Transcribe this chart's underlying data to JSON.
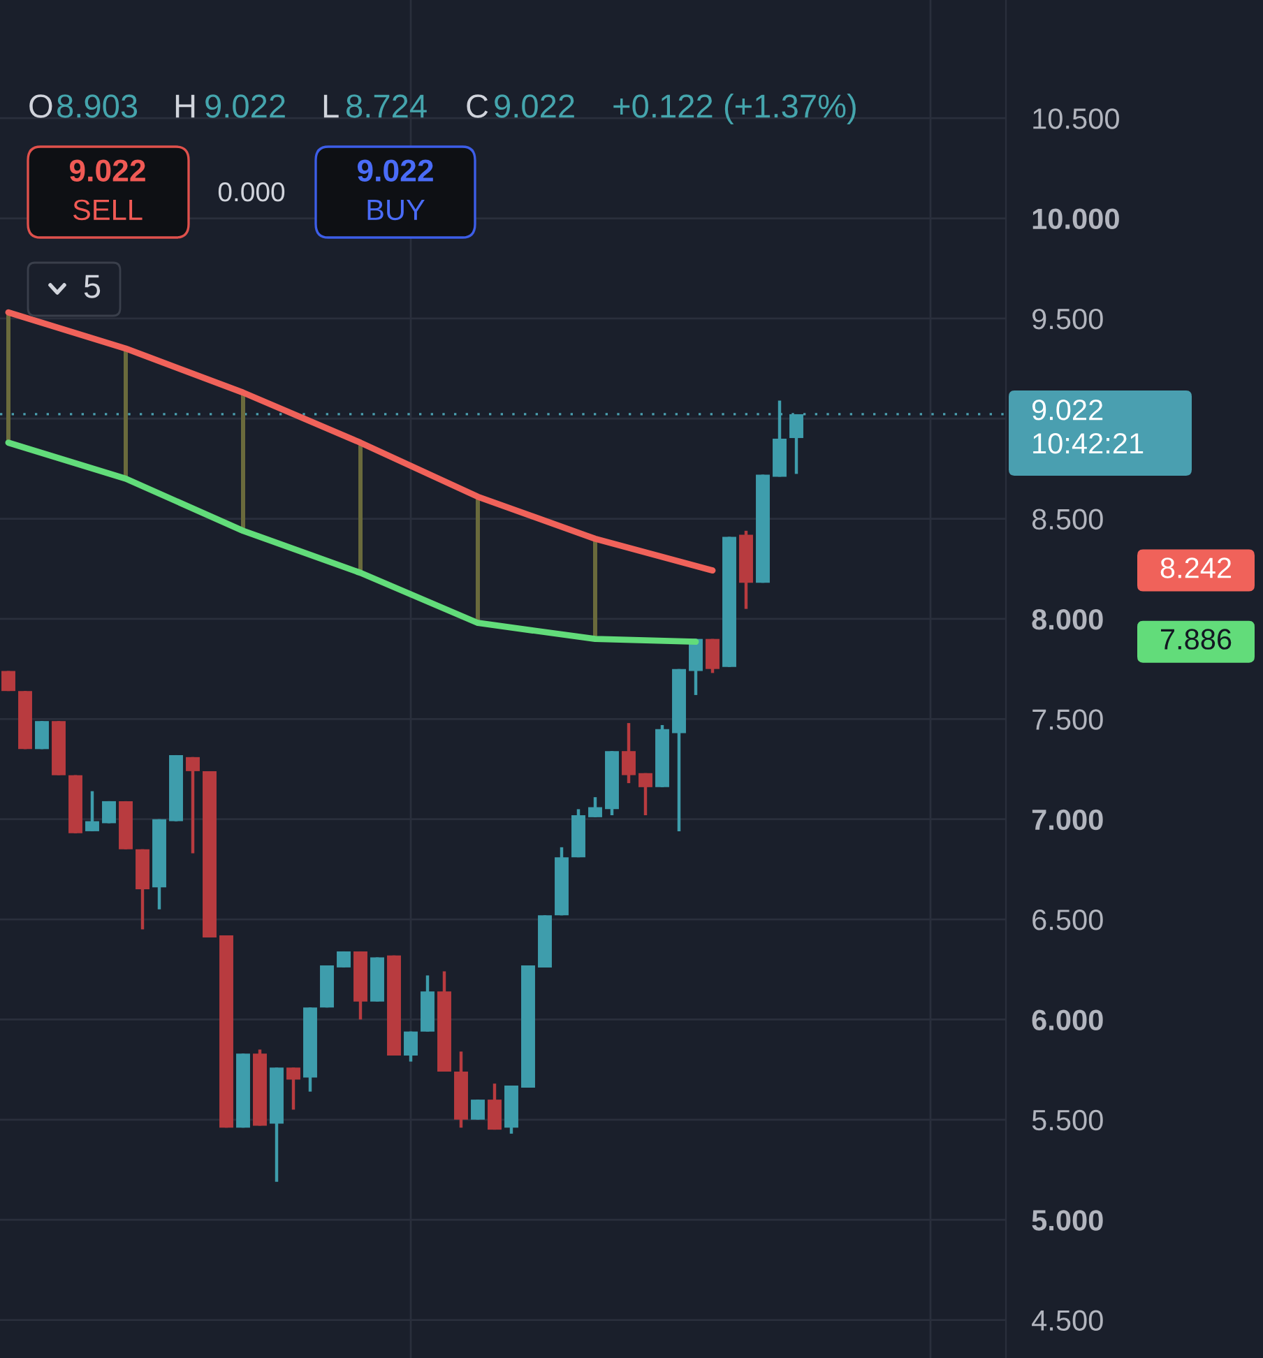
{
  "chart_data": {
    "type": "candlestick",
    "annotations": [
      "O",
      "8.903",
      "H",
      "9.022",
      "L",
      "8.724",
      "C",
      "9.022",
      "+0.122 (+1.37%)",
      "9.022",
      "SELL",
      "0.000",
      "9.022",
      "BUY",
      "5",
      "8.242",
      "7.886"
    ],
    "categories": [
      null,
      null,
      null,
      null,
      null,
      null,
      null,
      null,
      null,
      null,
      null,
      null,
      null,
      null,
      null,
      null,
      null,
      null,
      null,
      null,
      null,
      null,
      null,
      null,
      null,
      null,
      null,
      null,
      null,
      null,
      null,
      null,
      null,
      null,
      null,
      null,
      null,
      null,
      null,
      null,
      null,
      null,
      null,
      null,
      null,
      null,
      null,
      null,
      null,
      null,
      null,
      null,
      null,
      null,
      null,
      null,
      null,
      null,
      null,
      null
    ],
    "ohlc": [
      [
        7.74,
        7.74,
        7.64,
        7.64
      ],
      [
        7.64,
        7.64,
        7.35,
        7.35
      ],
      [
        7.35,
        7.49,
        7.35,
        7.49
      ],
      [
        7.49,
        7.49,
        7.22,
        7.22
      ],
      [
        7.22,
        7.22,
        6.93,
        6.93
      ],
      [
        6.94,
        7.14,
        6.94,
        6.99
      ],
      [
        6.98,
        7.09,
        6.98,
        7.09
      ],
      [
        7.09,
        7.09,
        6.85,
        6.85
      ],
      [
        6.85,
        6.85,
        6.45,
        6.65
      ],
      [
        6.66,
        7.0,
        6.55,
        7.0
      ],
      [
        6.99,
        7.32,
        6.99,
        7.32
      ],
      [
        7.31,
        7.31,
        6.83,
        7.24
      ],
      [
        7.24,
        7.24,
        6.41,
        6.41
      ],
      [
        6.42,
        6.42,
        5.46,
        5.46
      ],
      [
        5.46,
        5.83,
        5.46,
        5.83
      ],
      [
        5.83,
        5.85,
        5.47,
        5.47
      ],
      [
        5.48,
        5.76,
        5.19,
        5.76
      ],
      [
        5.76,
        5.76,
        5.55,
        5.7
      ],
      [
        5.71,
        6.06,
        5.64,
        6.06
      ],
      [
        6.06,
        6.27,
        6.06,
        6.27
      ],
      [
        6.26,
        6.34,
        6.26,
        6.34
      ],
      [
        6.34,
        6.34,
        6.0,
        6.09
      ],
      [
        6.09,
        6.31,
        6.09,
        6.31
      ],
      [
        6.32,
        6.32,
        5.82,
        5.82
      ],
      [
        5.82,
        5.94,
        5.79,
        5.94
      ],
      [
        5.94,
        6.22,
        5.94,
        6.14
      ],
      [
        6.14,
        6.24,
        5.74,
        5.74
      ],
      [
        5.74,
        5.84,
        5.46,
        5.5
      ],
      [
        5.5,
        5.6,
        5.5,
        5.6
      ],
      [
        5.6,
        5.68,
        5.45,
        5.45
      ],
      [
        5.46,
        5.67,
        5.43,
        5.67
      ],
      [
        5.66,
        6.27,
        5.66,
        6.27
      ],
      [
        6.26,
        6.52,
        6.26,
        6.52
      ],
      [
        6.52,
        6.86,
        6.52,
        6.81
      ],
      [
        6.81,
        7.05,
        6.81,
        7.02
      ],
      [
        7.01,
        7.11,
        7.01,
        7.06
      ],
      [
        7.05,
        7.34,
        7.02,
        7.34
      ],
      [
        7.34,
        7.48,
        7.18,
        7.22
      ],
      [
        7.23,
        7.23,
        7.02,
        7.16
      ],
      [
        7.16,
        7.47,
        7.16,
        7.45
      ],
      [
        7.43,
        7.75,
        6.94,
        7.75
      ],
      [
        7.74,
        7.9,
        7.62,
        7.9
      ],
      [
        7.9,
        7.9,
        7.73,
        7.75
      ],
      [
        7.76,
        8.41,
        7.76,
        8.41
      ],
      [
        8.42,
        8.44,
        8.05,
        8.18
      ],
      [
        8.18,
        8.72,
        8.18,
        8.72
      ],
      [
        8.71,
        9.09,
        8.71,
        8.9
      ],
      [
        8.903,
        9.022,
        8.724,
        9.022
      ],
      null,
      null,
      null,
      null,
      null,
      null,
      null,
      null,
      null,
      null,
      null,
      null
    ],
    "colors": [
      "#b83b3f",
      "#b83b3f",
      "#3e9dac",
      "#b83b3f",
      "#b83b3f",
      "#3e9dac",
      "#3e9dac",
      "#b83b3f",
      "#b83b3f",
      "#3e9dac",
      "#3e9dac",
      "#b83b3f",
      "#b83b3f",
      "#b83b3f",
      "#3e9dac",
      "#b83b3f",
      "#3e9dac",
      "#b83b3f",
      "#3e9dac",
      "#3e9dac",
      "#3e9dac",
      "#b83b3f",
      "#3e9dac",
      "#b83b3f",
      "#3e9dac",
      "#3e9dac",
      "#b83b3f",
      "#b83b3f",
      "#3e9dac",
      "#b83b3f",
      "#3e9dac",
      "#3e9dac",
      "#3e9dac",
      "#3e9dac",
      "#3e9dac",
      "#3e9dac",
      "#3e9dac",
      "#b83b3f",
      "#b83b3f",
      "#3e9dac",
      "#3e9dac",
      "#3e9dac",
      "#b83b3f",
      "#3e9dac",
      "#b83b3f",
      "#3e9dac",
      "#3e9dac",
      "#3e9dac",
      null,
      null,
      null,
      null,
      null,
      null,
      null,
      null,
      null,
      null,
      null,
      null
    ],
    "series": [
      {
        "type": "bar",
        "color": "#6a6a3c",
        "base": [
          8.88,
          null,
          null,
          null,
          null,
          null,
          null,
          8.7,
          null,
          null,
          null,
          null,
          null,
          null,
          8.44,
          null,
          null,
          null,
          null,
          null,
          null,
          8.23,
          null,
          null,
          null,
          null,
          null,
          null,
          7.98,
          null,
          null,
          null,
          null,
          null,
          null,
          7.9,
          null,
          null,
          null,
          null,
          null,
          null,
          null,
          null,
          null,
          null,
          null,
          null,
          null,
          null,
          null,
          null,
          null,
          null,
          null,
          null,
          null,
          null,
          null,
          null
        ],
        "values": [
          0.65,
          null,
          null,
          null,
          null,
          null,
          null,
          0.65,
          null,
          null,
          null,
          null,
          null,
          null,
          0.69,
          null,
          null,
          null,
          null,
          null,
          null,
          0.65,
          null,
          null,
          null,
          null,
          null,
          null,
          0.63,
          null,
          null,
          null,
          null,
          null,
          null,
          0.5,
          null,
          null,
          null,
          null,
          null,
          null,
          null,
          null,
          null,
          null,
          null,
          null,
          null,
          null,
          null,
          null,
          null,
          null,
          null,
          null,
          null,
          null,
          null,
          null
        ]
      },
      {
        "type": "line",
        "color": "#f0625a",
        "values": [
          9.53,
          null,
          null,
          null,
          null,
          null,
          null,
          9.35,
          null,
          null,
          null,
          null,
          null,
          null,
          9.13,
          null,
          null,
          null,
          null,
          null,
          null,
          8.88,
          null,
          null,
          null,
          null,
          null,
          null,
          8.61,
          null,
          null,
          null,
          null,
          null,
          null,
          8.4,
          null,
          null,
          null,
          null,
          null,
          null,
          8.242,
          null,
          null,
          null,
          null,
          null,
          null,
          null,
          null,
          null,
          null,
          null,
          null,
          null,
          null,
          null,
          null,
          null
        ]
      },
      {
        "type": "line",
        "color": "#62dc7a",
        "values": [
          8.88,
          null,
          null,
          null,
          null,
          null,
          null,
          8.7,
          null,
          null,
          null,
          null,
          null,
          null,
          8.44,
          null,
          null,
          null,
          null,
          null,
          null,
          8.23,
          null,
          null,
          null,
          null,
          null,
          null,
          7.98,
          null,
          null,
          null,
          null,
          null,
          null,
          7.9,
          null,
          null,
          null,
          null,
          null,
          7.886,
          null,
          null,
          null,
          null,
          null,
          null,
          null,
          null,
          null,
          null,
          null,
          null,
          null,
          null,
          null,
          null,
          null,
          null
        ]
      }
    ],
    "ylim": [
      4.31,
      11.09
    ],
    "yticks": [
      {
        "value": 4.5,
        "label": "4.500"
      },
      {
        "value": 5,
        "label": "5.000"
      },
      {
        "value": 5.5,
        "label": "5.500"
      },
      {
        "value": 6,
        "label": "6.000"
      },
      {
        "value": 6.5,
        "label": "6.500"
      },
      {
        "value": 7,
        "label": "7.000"
      },
      {
        "value": 7.5,
        "label": "7.500"
      },
      {
        "value": 8,
        "label": "8.000"
      },
      {
        "value": 8.5,
        "label": "8.500"
      },
      {
        "value": 9,
        "label": null
      },
      {
        "value": 9.5,
        "label": "9.500"
      },
      {
        "value": 10,
        "label": "10.000"
      },
      {
        "value": 10.5,
        "label": "10.500"
      }
    ],
    "grid": true,
    "ref_lines": [
      {
        "axis": "y",
        "value": 9.022,
        "label": "9.022\n10:42:21",
        "color": "#4a9fb0",
        "line_style": "dotted"
      }
    ]
  }
}
